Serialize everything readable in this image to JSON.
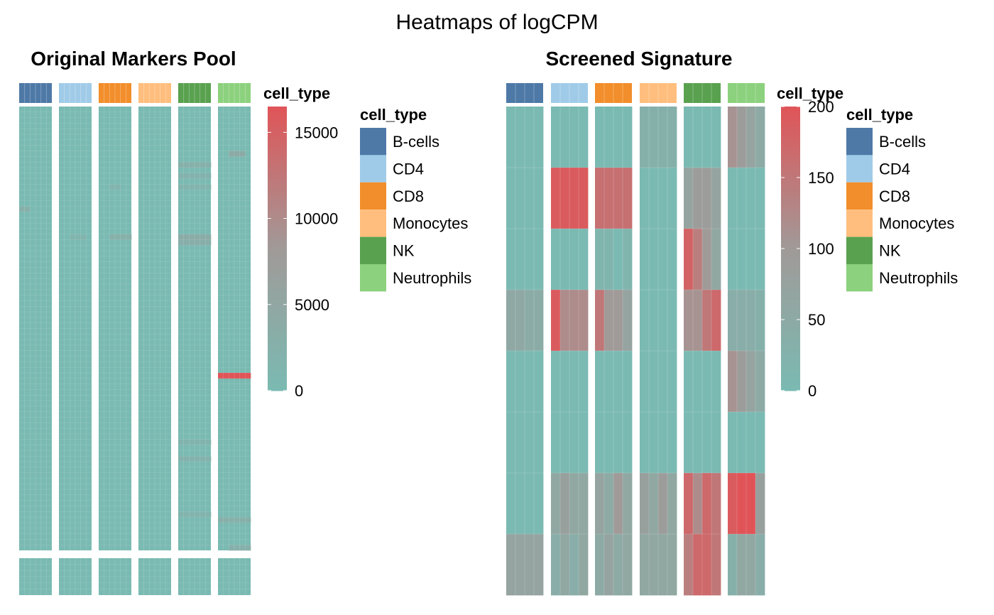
{
  "title": "Heatmaps of logCPM",
  "colors": {
    "low": "#7ABAB2",
    "mid": "#A09A98",
    "high": "#E05458",
    "cell_types": {
      "B-cells": "#4E79A7",
      "CD4": "#A0CBE8",
      "CD8": "#F28E2B",
      "Monocytes": "#FFBE7D",
      "NK": "#59A14F",
      "Neutrophils": "#8CD17D"
    }
  },
  "chart_data": [
    {
      "type": "heatmap",
      "title": "Original Markers Pool",
      "annotation_title": "cell_type",
      "cell_types": [
        "B-cells",
        "CD4",
        "CD8",
        "Monocytes",
        "NK",
        "Neutrophils"
      ],
      "columns_per_group": 6,
      "row_groups": [
        {
          "rows": 80,
          "highlights": [
            {
              "group": "Neutrophils",
              "row": 8,
              "cols": [
                2,
                3,
                4
              ],
              "value": 4000
            },
            {
              "group": "NK",
              "row": 10,
              "cols": [
                0,
                1,
                2,
                3,
                4,
                5
              ],
              "value": 2500
            },
            {
              "group": "NK",
              "row": 12,
              "cols": [
                0,
                1,
                2,
                3,
                4,
                5
              ],
              "value": 2000
            },
            {
              "group": "NK",
              "row": 14,
              "cols": [
                0,
                1,
                2,
                3,
                4,
                5
              ],
              "value": 1500
            },
            {
              "group": "B-cells",
              "row": 18,
              "cols": [
                0,
                1
              ],
              "value": 2500
            },
            {
              "group": "CD8",
              "row": 14,
              "cols": [
                2,
                3
              ],
              "value": 1500
            },
            {
              "group": "CD8",
              "row": 23,
              "cols": [
                2,
                3,
                4,
                5
              ],
              "value": 2500
            },
            {
              "group": "CD4",
              "row": 23,
              "cols": [
                2,
                3,
                4
              ],
              "value": 1500
            },
            {
              "group": "NK",
              "row": 23,
              "cols": [
                0,
                1,
                2,
                3,
                4,
                5
              ],
              "value": 3500
            },
            {
              "group": "NK",
              "row": 24,
              "cols": [
                0,
                1,
                2,
                3,
                4,
                5
              ],
              "value": 3000
            },
            {
              "group": "Neutrophils",
              "row": 48,
              "cols": [
                0,
                1,
                2,
                3,
                4,
                5
              ],
              "value": 16500
            },
            {
              "group": "NK",
              "row": 60,
              "cols": [
                0,
                1,
                2,
                3,
                4,
                5
              ],
              "value": 1500
            },
            {
              "group": "NK",
              "row": 63,
              "cols": [
                0,
                1,
                2,
                3,
                4,
                5
              ],
              "value": 2000
            },
            {
              "group": "NK",
              "row": 73,
              "cols": [
                0,
                1,
                2,
                3,
                4,
                5
              ],
              "value": 1500
            },
            {
              "group": "Neutrophils",
              "row": 74,
              "cols": [
                0,
                1,
                2,
                3,
                4,
                5
              ],
              "value": 2500
            },
            {
              "group": "Neutrophils",
              "row": 79,
              "cols": [
                2,
                3,
                4,
                5
              ],
              "value": 2500
            }
          ]
        },
        {
          "rows": 6,
          "highlights": []
        }
      ],
      "color_scale": {
        "title": "cell_type",
        "min": 0,
        "max": 16500,
        "ticks": [
          0,
          5000,
          10000,
          15000
        ]
      },
      "legend": {
        "title": "cell_type",
        "entries": [
          "B-cells",
          "CD4",
          "CD8",
          "Monocytes",
          "NK",
          "Neutrophils"
        ]
      }
    },
    {
      "type": "heatmap",
      "title": "Screened Signature",
      "annotation_title": "cell_type",
      "cell_types": [
        "B-cells",
        "CD4",
        "CD8",
        "Monocytes",
        "NK",
        "Neutrophils"
      ],
      "columns_per_group": 4,
      "rows": 8,
      "values": [
        [
          [
            0,
            0,
            0,
            0
          ],
          [
            0,
            0,
            0,
            0
          ],
          [
            0,
            0,
            0,
            0
          ],
          [
            30,
            30,
            30,
            30
          ],
          [
            0,
            0,
            0,
            0
          ],
          [
            110,
            90,
            70,
            50
          ]
        ],
        [
          [
            0,
            0,
            0,
            0
          ],
          [
            190,
            190,
            190,
            190
          ],
          [
            160,
            160,
            160,
            160
          ],
          [
            0,
            0,
            0,
            0
          ],
          [
            70,
            90,
            90,
            70
          ],
          [
            0,
            0,
            0,
            0
          ]
        ],
        [
          [
            0,
            0,
            0,
            0
          ],
          [
            0,
            0,
            0,
            0
          ],
          [
            15,
            15,
            0,
            15
          ],
          [
            0,
            0,
            0,
            0
          ],
          [
            180,
            140,
            100,
            60
          ],
          [
            0,
            0,
            0,
            0
          ]
        ],
        [
          [
            55,
            55,
            45,
            45
          ],
          [
            190,
            120,
            120,
            120
          ],
          [
            150,
            100,
            100,
            70
          ],
          [
            0,
            0,
            0,
            0
          ],
          [
            110,
            110,
            150,
            170
          ],
          [
            40,
            40,
            40,
            30
          ]
        ],
        [
          [
            0,
            0,
            0,
            0
          ],
          [
            0,
            0,
            0,
            0
          ],
          [
            0,
            0,
            0,
            0
          ],
          [
            0,
            0,
            0,
            0
          ],
          [
            0,
            0,
            0,
            0
          ],
          [
            110,
            90,
            70,
            50
          ]
        ],
        [
          [
            0,
            0,
            0,
            0
          ],
          [
            0,
            0,
            0,
            0
          ],
          [
            0,
            0,
            0,
            0
          ],
          [
            0,
            0,
            0,
            0
          ],
          [
            0,
            0,
            0,
            0
          ],
          [
            0,
            0,
            0,
            0
          ]
        ],
        [
          [
            0,
            0,
            0,
            0
          ],
          [
            60,
            80,
            60,
            60
          ],
          [
            70,
            50,
            100,
            60
          ],
          [
            80,
            60,
            90,
            60
          ],
          [
            170,
            120,
            170,
            150
          ],
          [
            190,
            200,
            200,
            80
          ]
        ],
        [
          [
            70,
            70,
            70,
            70
          ],
          [
            40,
            60,
            40,
            60
          ],
          [
            50,
            70,
            50,
            60
          ],
          [
            60,
            60,
            60,
            60
          ],
          [
            140,
            170,
            170,
            150
          ],
          [
            30,
            60,
            60,
            40
          ]
        ]
      ],
      "color_scale": {
        "title": "cell_type",
        "min": 0,
        "max": 200,
        "ticks": [
          0,
          50,
          100,
          150,
          200
        ]
      },
      "legend": {
        "title": "cell_type",
        "entries": [
          "B-cells",
          "CD4",
          "CD8",
          "Monocytes",
          "NK",
          "Neutrophils"
        ]
      }
    }
  ]
}
